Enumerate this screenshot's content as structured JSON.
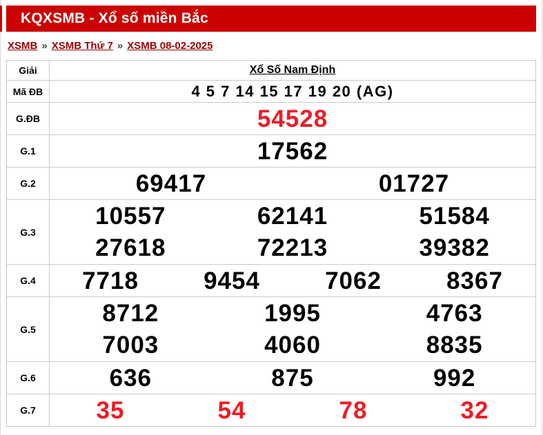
{
  "header": {
    "title": "KQXSMB - Xổ số miền Bắc"
  },
  "breadcrumb": {
    "separator": "»",
    "items": [
      {
        "label": "XSMB"
      },
      {
        "label": "XSMB Thứ 7"
      },
      {
        "label": "XSMB 08-02-2025"
      }
    ]
  },
  "table": {
    "col_label_header": "Giải",
    "col_value_header": "Xổ Số Nam Định",
    "rows": [
      {
        "label": "Mã ĐB",
        "type": "code",
        "color": "black",
        "lines": [
          [
            "4 5 7 14 15 17 19 20 (AG)"
          ]
        ]
      },
      {
        "label": "G.ĐB",
        "type": "prize",
        "color": "red",
        "lines": [
          [
            "54528"
          ]
        ]
      },
      {
        "label": "G.1",
        "type": "prize",
        "color": "black",
        "lines": [
          [
            "17562"
          ]
        ]
      },
      {
        "label": "G.2",
        "type": "prize",
        "color": "black",
        "lines": [
          [
            "69417",
            "01727"
          ]
        ]
      },
      {
        "label": "G.3",
        "type": "prize",
        "color": "black",
        "lines": [
          [
            "10557",
            "62141",
            "51584"
          ],
          [
            "27618",
            "72213",
            "39382"
          ]
        ]
      },
      {
        "label": "G.4",
        "type": "prize",
        "color": "black",
        "lines": [
          [
            "7718",
            "9454",
            "7062",
            "8367"
          ]
        ]
      },
      {
        "label": "G.5",
        "type": "prize",
        "color": "black",
        "lines": [
          [
            "8712",
            "1995",
            "4763"
          ],
          [
            "7003",
            "4060",
            "8835"
          ]
        ]
      },
      {
        "label": "G.6",
        "type": "prize",
        "color": "black",
        "lines": [
          [
            "636",
            "875",
            "992"
          ]
        ]
      },
      {
        "label": "G.7",
        "type": "prize",
        "color": "red",
        "lines": [
          [
            "35",
            "54",
            "78",
            "32"
          ]
        ]
      }
    ]
  },
  "colors": {
    "header_bg": "#cc0000",
    "accent_red": "#ed1c25",
    "link_red": "#990000",
    "border_gray": "#c9c9c9"
  }
}
